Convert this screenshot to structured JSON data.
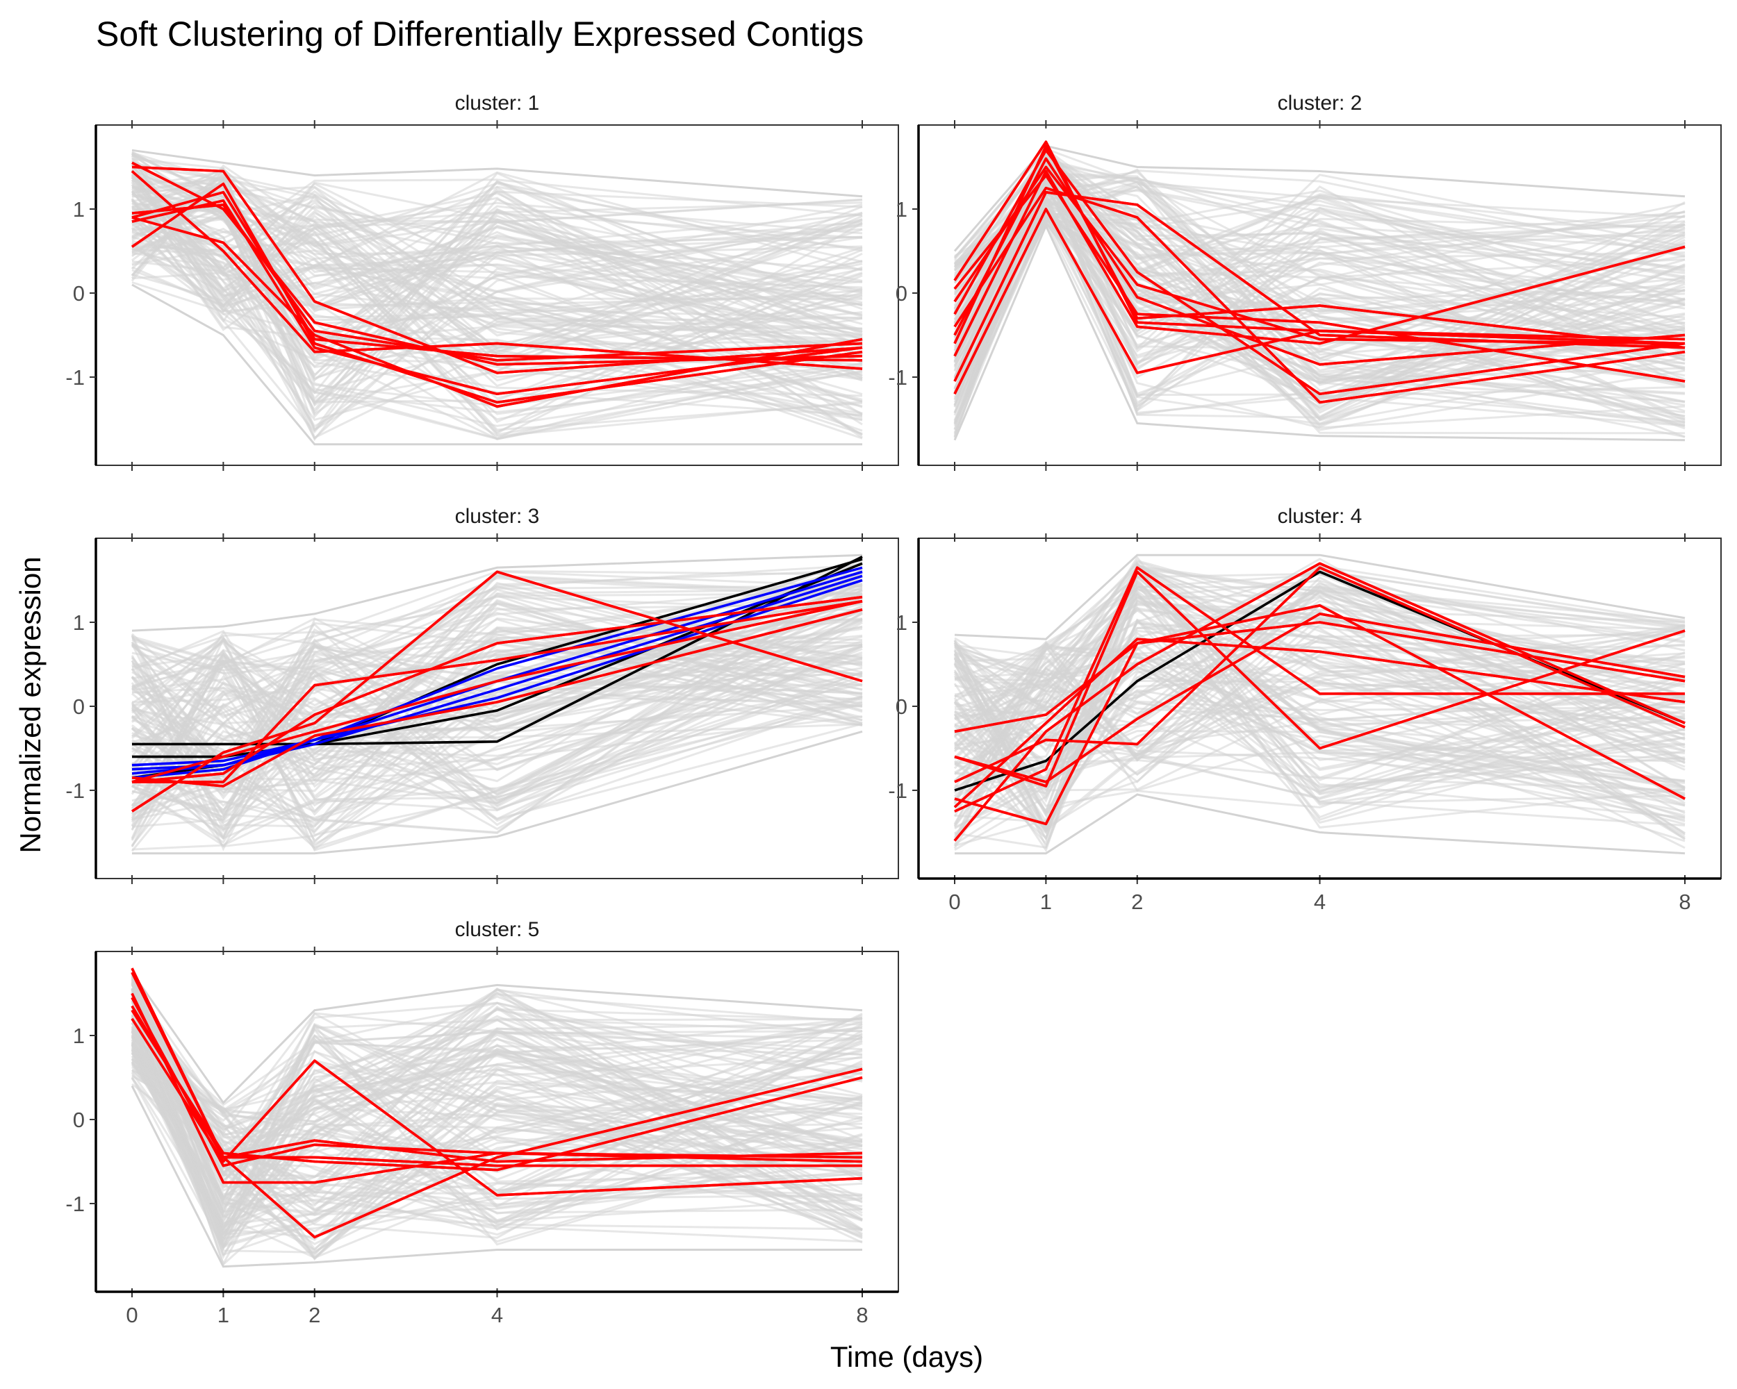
{
  "chart_data": {
    "type": "line",
    "title": "Soft Clustering of Differentially Expressed Contigs",
    "xlabel": "Time (days)",
    "ylabel": "Normalized expression",
    "x": [
      0,
      1,
      2,
      4,
      8
    ],
    "xticks": [
      "0",
      "1",
      "2",
      "4",
      "8"
    ],
    "yticks": [
      "-1",
      "0",
      "1"
    ],
    "ylim": [
      -2.05,
      2.0
    ],
    "grid": false,
    "colors": {
      "background": "#d3d3d3",
      "highlight": "#ff0000",
      "core": "#0000ff",
      "centroid": "#000000"
    },
    "panels": [
      {
        "strip": "cluster: 1",
        "background_band": {
          "upper": [
            1.7,
            1.55,
            1.4,
            1.48,
            1.15
          ],
          "lower": [
            0.1,
            -0.5,
            -1.8,
            -1.8,
            -1.8
          ]
        },
        "series": [
          {
            "color": "red",
            "values": [
              1.55,
              1.0,
              -0.35,
              -0.85,
              -0.75
            ]
          },
          {
            "color": "red",
            "values": [
              1.5,
              1.45,
              -0.1,
              -0.95,
              -0.65
            ]
          },
          {
            "color": "red",
            "values": [
              0.95,
              1.05,
              -0.45,
              -0.8,
              -0.6
            ]
          },
          {
            "color": "red",
            "values": [
              0.9,
              1.2,
              -0.55,
              -0.75,
              -0.8
            ]
          },
          {
            "color": "red",
            "values": [
              0.55,
              1.3,
              -0.6,
              -1.3,
              -0.7
            ]
          },
          {
            "color": "red",
            "values": [
              0.9,
              0.6,
              -0.5,
              -1.35,
              -0.55
            ]
          },
          {
            "color": "red",
            "values": [
              1.45,
              0.5,
              -0.7,
              -0.6,
              -0.9
            ]
          },
          {
            "color": "red",
            "values": [
              0.85,
              1.1,
              -0.65,
              -1.2,
              -0.65
            ]
          }
        ]
      },
      {
        "strip": "cluster: 2",
        "background_band": {
          "upper": [
            0.5,
            1.75,
            1.5,
            1.45,
            1.15
          ],
          "lower": [
            -1.75,
            0.8,
            -1.55,
            -1.7,
            -1.75
          ]
        },
        "series": [
          {
            "color": "red",
            "values": [
              0.15,
              1.8,
              -0.35,
              -0.45,
              -0.6
            ]
          },
          {
            "color": "red",
            "values": [
              -0.1,
              1.5,
              0.1,
              -0.55,
              -0.6
            ]
          },
          {
            "color": "red",
            "values": [
              -0.6,
              1.75,
              -0.3,
              -0.15,
              -0.65
            ]
          },
          {
            "color": "red",
            "values": [
              -1.2,
              1.0,
              -0.95,
              -0.45,
              -0.55
            ]
          },
          {
            "color": "red",
            "values": [
              -1.05,
              1.2,
              1.05,
              -0.5,
              -0.65
            ]
          },
          {
            "color": "red",
            "values": [
              -0.5,
              1.6,
              -0.05,
              -0.85,
              -0.5
            ]
          },
          {
            "color": "red",
            "values": [
              0.05,
              1.4,
              -0.25,
              -0.35,
              -1.05
            ]
          },
          {
            "color": "red",
            "values": [
              -0.25,
              1.7,
              0.25,
              -1.2,
              -0.6
            ]
          },
          {
            "color": "red",
            "values": [
              -0.75,
              1.45,
              -0.4,
              -0.6,
              0.55
            ]
          },
          {
            "color": "red",
            "values": [
              -0.4,
              1.25,
              0.9,
              -1.3,
              -0.7
            ]
          }
        ]
      },
      {
        "strip": "cluster: 3",
        "background_band": {
          "upper": [
            0.9,
            0.95,
            1.1,
            1.65,
            1.8
          ],
          "lower": [
            -1.75,
            -1.75,
            -1.75,
            -1.55,
            -0.3
          ]
        },
        "series": [
          {
            "color": "black",
            "values": [
              -0.45,
              -0.45,
              -0.45,
              -0.42,
              1.78
            ]
          },
          {
            "color": "black",
            "values": [
              -0.6,
              -0.6,
              -0.45,
              0.5,
              1.75
            ]
          },
          {
            "color": "black",
            "values": [
              -0.85,
              -0.7,
              -0.45,
              -0.05,
              1.7
            ]
          },
          {
            "color": "blue",
            "values": [
              -0.7,
              -0.65,
              -0.4,
              0.45,
              1.65
            ]
          },
          {
            "color": "blue",
            "values": [
              -0.75,
              -0.7,
              -0.4,
              0.3,
              1.6
            ]
          },
          {
            "color": "blue",
            "values": [
              -0.8,
              -0.7,
              -0.45,
              0.2,
              1.55
            ]
          },
          {
            "color": "blue",
            "values": [
              -0.85,
              -0.75,
              -0.4,
              0.1,
              1.5
            ]
          },
          {
            "color": "red",
            "values": [
              -0.9,
              -0.9,
              0.25,
              0.55,
              1.25
            ]
          },
          {
            "color": "red",
            "values": [
              -1.25,
              -0.55,
              -0.2,
              1.6,
              0.3
            ]
          },
          {
            "color": "red",
            "values": [
              -0.9,
              -0.8,
              -0.1,
              0.75,
              1.3
            ]
          },
          {
            "color": "red",
            "values": [
              -0.85,
              -0.95,
              -0.35,
              0.05,
              1.15
            ]
          },
          {
            "color": "red",
            "values": [
              -0.9,
              -0.6,
              -0.3,
              0.3,
              1.25
            ]
          }
        ]
      },
      {
        "strip": "cluster: 4",
        "background_band": {
          "upper": [
            0.85,
            0.8,
            1.8,
            1.8,
            1.05
          ],
          "lower": [
            -1.75,
            -1.75,
            -1.05,
            -1.5,
            -1.75
          ]
        },
        "series": [
          {
            "color": "black",
            "values": [
              -1.0,
              -0.65,
              0.3,
              1.6,
              -0.2
            ]
          },
          {
            "color": "red",
            "values": [
              -0.3,
              -0.1,
              0.75,
              1.0,
              0.3
            ]
          },
          {
            "color": "red",
            "values": [
              -1.25,
              -0.75,
              1.65,
              0.15,
              0.15
            ]
          },
          {
            "color": "red",
            "values": [
              -0.6,
              -0.9,
              -0.15,
              1.1,
              0.35
            ]
          },
          {
            "color": "red",
            "values": [
              -1.6,
              -0.3,
              0.5,
              1.7,
              -0.2
            ]
          },
          {
            "color": "red",
            "values": [
              -1.1,
              -1.4,
              0.75,
              1.2,
              -1.1
            ]
          },
          {
            "color": "red",
            "values": [
              -0.6,
              -0.95,
              1.6,
              -0.5,
              0.9
            ]
          },
          {
            "color": "red",
            "values": [
              -0.9,
              -0.4,
              -0.45,
              1.65,
              -0.25
            ]
          },
          {
            "color": "red",
            "values": [
              -1.2,
              -0.2,
              0.8,
              0.65,
              0.05
            ]
          }
        ]
      },
      {
        "strip": "cluster: 5",
        "background_band": {
          "upper": [
            1.75,
            0.2,
            1.3,
            1.6,
            1.3
          ],
          "lower": [
            0.4,
            -1.75,
            -1.7,
            -1.55,
            -1.55
          ]
        },
        "series": [
          {
            "color": "red",
            "values": [
              1.8,
              -0.45,
              -1.4,
              -0.45,
              0.6
            ]
          },
          {
            "color": "red",
            "values": [
              1.5,
              -0.75,
              -0.75,
              -0.4,
              -0.5
            ]
          },
          {
            "color": "red",
            "values": [
              1.35,
              -0.45,
              -0.25,
              -0.5,
              -0.4
            ]
          },
          {
            "color": "red",
            "values": [
              1.2,
              -0.5,
              0.7,
              -0.9,
              -0.7
            ]
          },
          {
            "color": "red",
            "values": [
              1.45,
              -0.55,
              -0.3,
              -0.4,
              -0.45
            ]
          },
          {
            "color": "red",
            "values": [
              1.3,
              -0.4,
              -0.5,
              -0.6,
              0.5
            ]
          },
          {
            "color": "red",
            "values": [
              1.75,
              -0.45,
              -0.45,
              -0.55,
              -0.55
            ]
          }
        ]
      }
    ]
  }
}
